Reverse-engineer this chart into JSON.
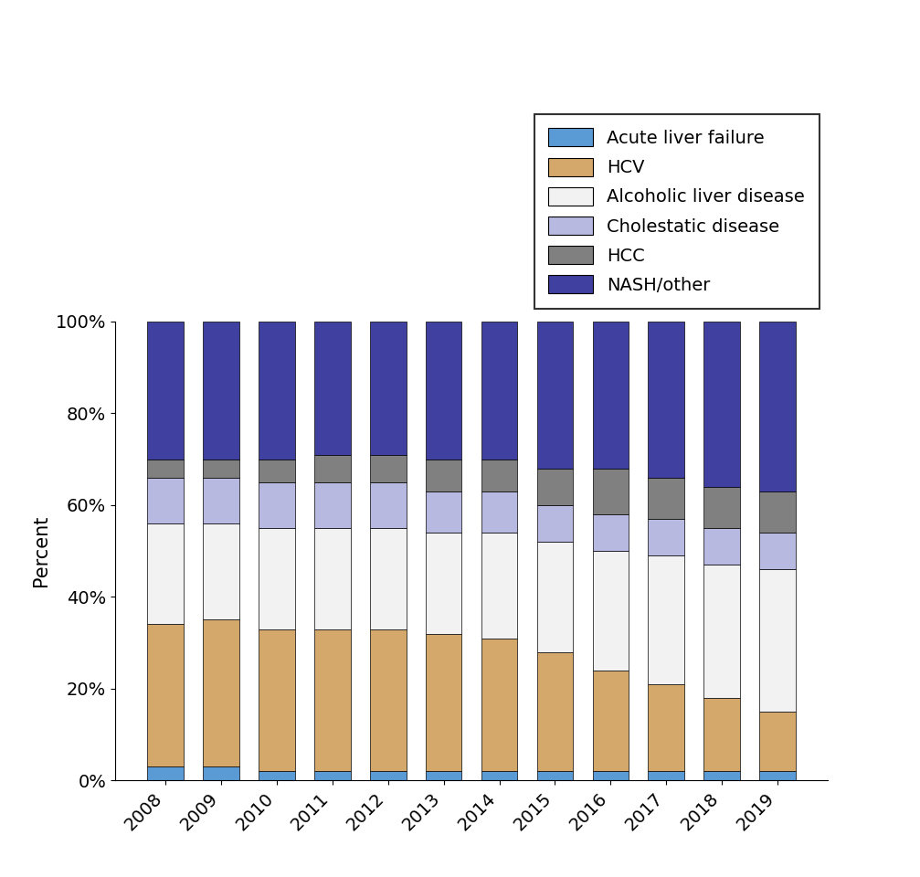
{
  "years": [
    2008,
    2009,
    2010,
    2011,
    2012,
    2013,
    2014,
    2015,
    2016,
    2017,
    2018,
    2019
  ],
  "series": {
    "Acute liver failure": [
      3,
      3,
      2,
      2,
      2,
      2,
      2,
      2,
      2,
      2,
      2,
      2
    ],
    "HCV": [
      31,
      32,
      31,
      31,
      31,
      30,
      29,
      26,
      22,
      19,
      16,
      13
    ],
    "Alcoholic liver disease": [
      22,
      21,
      22,
      22,
      22,
      22,
      23,
      24,
      26,
      28,
      29,
      31
    ],
    "Cholestatic disease": [
      10,
      10,
      10,
      10,
      10,
      9,
      9,
      8,
      8,
      8,
      8,
      8
    ],
    "HCC": [
      4,
      4,
      5,
      6,
      6,
      7,
      7,
      8,
      10,
      9,
      9,
      9
    ],
    "NASH/other": [
      30,
      30,
      30,
      29,
      29,
      30,
      30,
      32,
      32,
      34,
      36,
      37
    ]
  },
  "colors": {
    "Acute liver failure": "#5b9bd5",
    "HCV": "#d4a86a",
    "Alcoholic liver disease": "#f2f2f2",
    "Cholestatic disease": "#b8b9e0",
    "HCC": "#808080",
    "NASH/other": "#4040a0"
  },
  "ylabel": "Percent",
  "ytick_labels": [
    "0%",
    "20%",
    "40%",
    "60%",
    "80%",
    "100%"
  ],
  "ytick_values": [
    0,
    20,
    40,
    60,
    80,
    100
  ],
  "legend_order": [
    "Acute liver failure",
    "HCV",
    "Alcoholic liver disease",
    "Cholestatic disease",
    "HCC",
    "NASH/other"
  ],
  "bar_width": 0.65,
  "edgecolor": "#000000",
  "legend_fontsize": 14,
  "axis_fontsize": 15,
  "tick_fontsize": 14
}
